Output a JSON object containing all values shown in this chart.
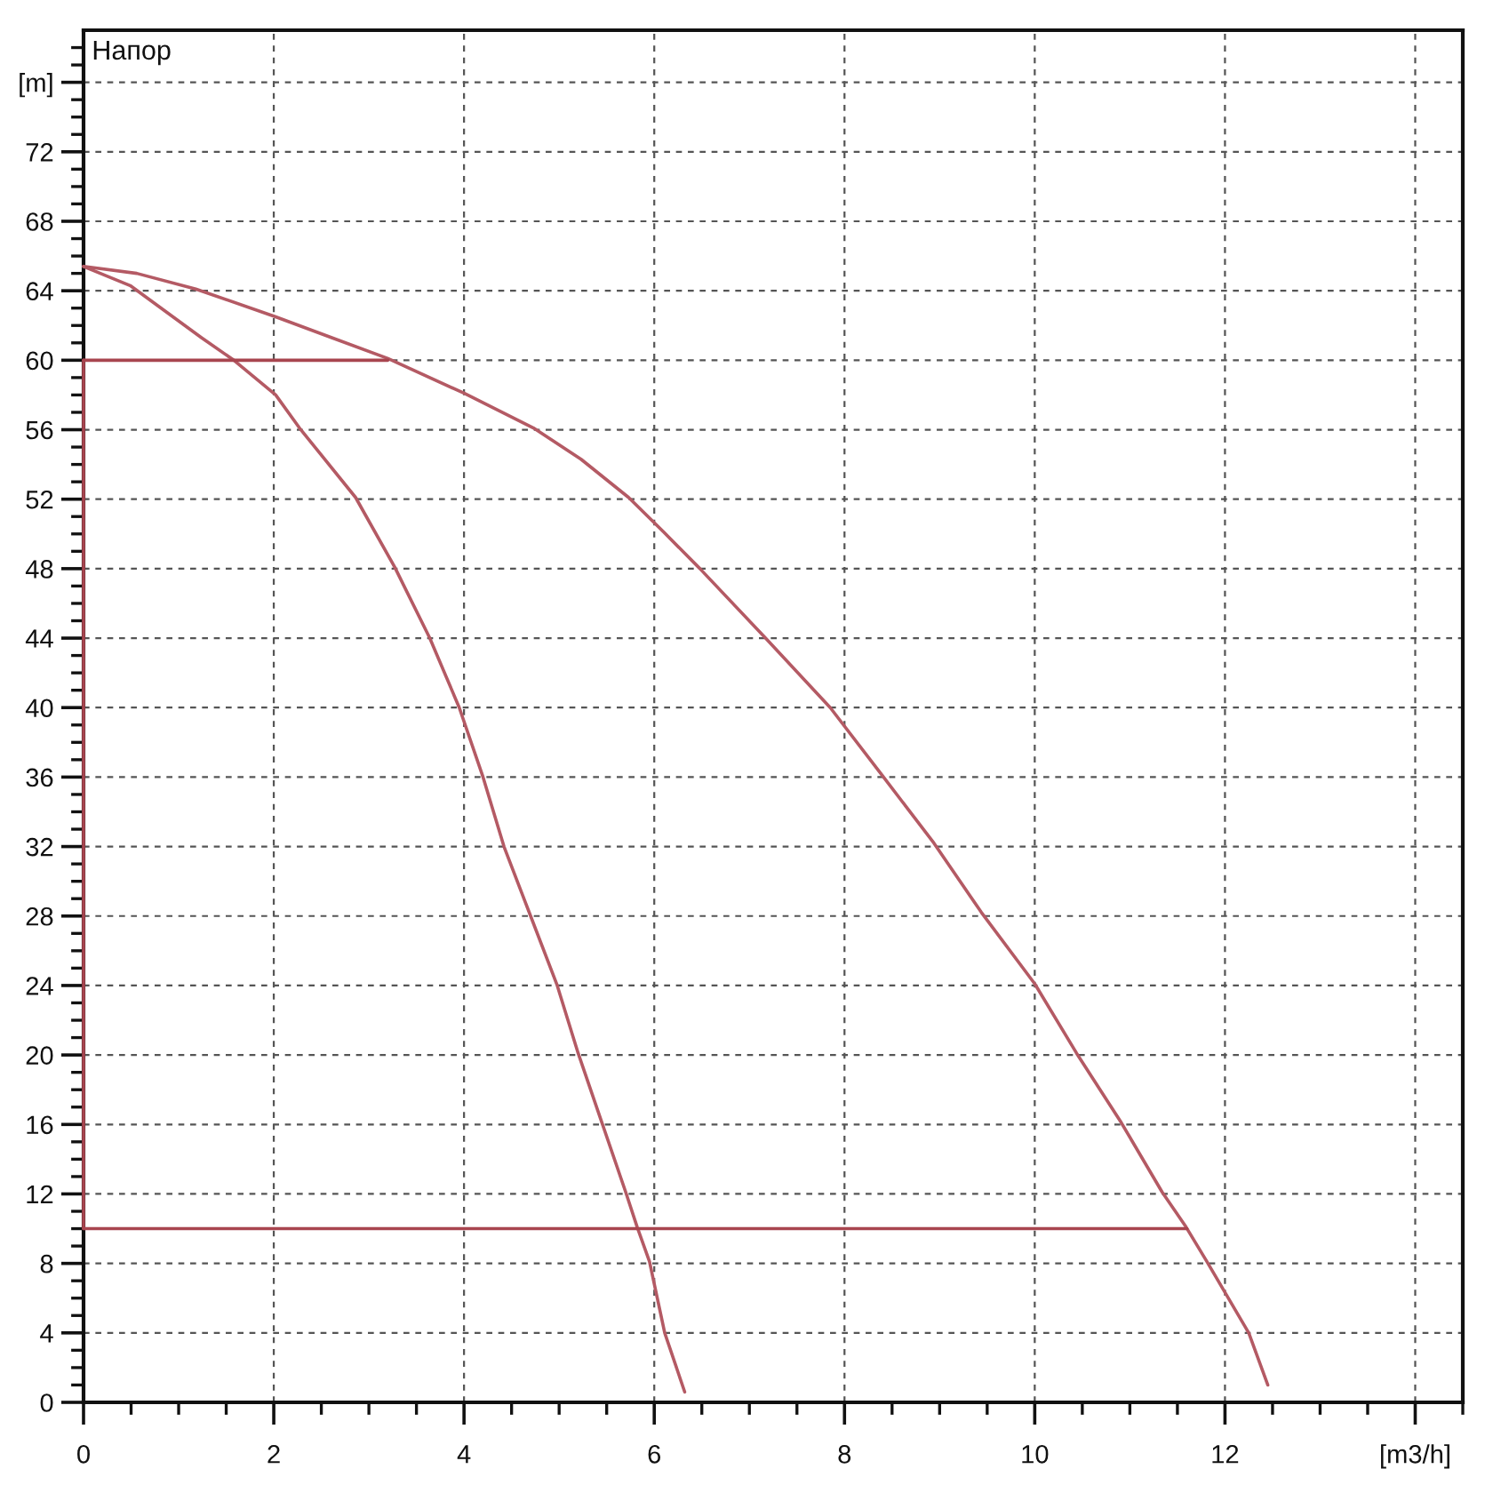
{
  "chart_data": {
    "type": "line",
    "title": "Напор",
    "xlim": [
      0,
      14.5
    ],
    "ylim": [
      0,
      79
    ],
    "xticks": [
      0,
      {
        "value": 0.5,
        "label": null
      },
      {
        "value": 1,
        "label": null
      },
      {
        "value": 1.5,
        "label": null
      },
      2,
      {
        "value": 2.5,
        "label": null
      },
      {
        "value": 3,
        "label": null
      },
      {
        "value": 3.5,
        "label": null
      },
      4,
      {
        "value": 4.5,
        "label": null
      },
      {
        "value": 5,
        "label": null
      },
      {
        "value": 5.5,
        "label": null
      },
      6,
      {
        "value": 6.5,
        "label": null
      },
      {
        "value": 7,
        "label": null
      },
      {
        "value": 7.5,
        "label": null
      },
      8,
      {
        "value": 8.5,
        "label": null
      },
      {
        "value": 9,
        "label": null
      },
      {
        "value": 9.5,
        "label": null
      },
      10,
      {
        "value": 10.5,
        "label": null
      },
      {
        "value": 11,
        "label": null
      },
      {
        "value": 11.5,
        "label": null
      },
      12,
      {
        "value": 12.5,
        "label": null
      },
      {
        "value": 13,
        "label": null
      },
      {
        "value": 13.5,
        "label": null
      },
      {
        "value": 14,
        "label": "[m3/h]"
      },
      {
        "value": 14.5,
        "label": null
      }
    ],
    "yticks": [
      0,
      {
        "value": 1,
        "label": null
      },
      {
        "value": 2,
        "label": null
      },
      {
        "value": 3,
        "label": null
      },
      4,
      {
        "value": 5,
        "label": null
      },
      {
        "value": 6,
        "label": null
      },
      {
        "value": 7,
        "label": null
      },
      8,
      {
        "value": 9,
        "label": null
      },
      {
        "value": 10,
        "label": null
      },
      {
        "value": 11,
        "label": null
      },
      12,
      {
        "value": 13,
        "label": null
      },
      {
        "value": 14,
        "label": null
      },
      {
        "value": 15,
        "label": null
      },
      16,
      {
        "value": 17,
        "label": null
      },
      {
        "value": 18,
        "label": null
      },
      {
        "value": 19,
        "label": null
      },
      20,
      {
        "value": 21,
        "label": null
      },
      {
        "value": 22,
        "label": null
      },
      {
        "value": 23,
        "label": null
      },
      24,
      {
        "value": 25,
        "label": null
      },
      {
        "value": 26,
        "label": null
      },
      {
        "value": 27,
        "label": null
      },
      28,
      {
        "value": 29,
        "label": null
      },
      {
        "value": 30,
        "label": null
      },
      {
        "value": 31,
        "label": null
      },
      32,
      {
        "value": 33,
        "label": null
      },
      {
        "value": 34,
        "label": null
      },
      {
        "value": 35,
        "label": null
      },
      36,
      {
        "value": 37,
        "label": null
      },
      {
        "value": 38,
        "label": null
      },
      {
        "value": 39,
        "label": null
      },
      40,
      {
        "value": 41,
        "label": null
      },
      {
        "value": 42,
        "label": null
      },
      {
        "value": 43,
        "label": null
      },
      44,
      {
        "value": 45,
        "label": null
      },
      {
        "value": 46,
        "label": null
      },
      {
        "value": 47,
        "label": null
      },
      48,
      {
        "value": 49,
        "label": null
      },
      {
        "value": 50,
        "label": null
      },
      {
        "value": 51,
        "label": null
      },
      52,
      {
        "value": 53,
        "label": null
      },
      {
        "value": 54,
        "label": null
      },
      {
        "value": 55,
        "label": null
      },
      56,
      {
        "value": 57,
        "label": null
      },
      {
        "value": 58,
        "label": null
      },
      {
        "value": 59,
        "label": null
      },
      60,
      {
        "value": 61,
        "label": null
      },
      {
        "value": 62,
        "label": null
      },
      {
        "value": 63,
        "label": null
      },
      64,
      {
        "value": 65,
        "label": null
      },
      {
        "value": 66,
        "label": null
      },
      {
        "value": 67,
        "label": null
      },
      68,
      {
        "value": 69,
        "label": null
      },
      {
        "value": 70,
        "label": null
      },
      {
        "value": 71,
        "label": null
      },
      72,
      {
        "value": 73,
        "label": null
      },
      {
        "value": 74,
        "label": null
      },
      {
        "value": 75,
        "label": null
      },
      {
        "value": 76,
        "label": "[m]"
      },
      {
        "value": 77,
        "label": null
      },
      {
        "value": 78,
        "label": null
      }
    ],
    "grid": true,
    "series": [
      {
        "color": "#b45a64",
        "x": [
          0,
          0.56,
          1.18,
          2.02,
          2.61,
          3.2,
          4.0,
          4.73,
          5.23,
          5.73,
          6.1,
          6.48,
          7.17,
          7.85,
          8.41,
          8.94,
          9.44,
          10.0,
          10.44,
          10.91,
          11.34,
          11.59,
          11.81,
          12.25,
          12.45
        ],
        "values": [
          65.4,
          65.0,
          64.1,
          62.5,
          61.3,
          60.1,
          58.1,
          56.1,
          54.3,
          52.1,
          50.1,
          48.0,
          44.0,
          40.0,
          36.0,
          32.2,
          28.2,
          24.1,
          20.1,
          16.1,
          12.1,
          10.1,
          8.1,
          4.0,
          1.0
        ]
      },
      {
        "color": "#b45a64",
        "x": [
          0,
          0.49,
          1.24,
          1.58,
          2.02,
          2.27,
          2.86,
          3.27,
          3.64,
          3.95,
          4.2,
          4.42,
          4.7,
          4.98,
          5.2,
          5.45,
          5.7,
          5.82,
          5.95,
          6.11,
          6.32
        ],
        "values": [
          65.4,
          64.3,
          61.3,
          60.0,
          58.0,
          56.1,
          52.1,
          48.1,
          44.0,
          40.0,
          36.0,
          32.0,
          28.0,
          24.0,
          20.1,
          16.1,
          12.1,
          10.1,
          8.1,
          4.0,
          0.6
        ]
      },
      {
        "color": "#a8454f",
        "x": [
          0,
          3.2
        ],
        "values": [
          60,
          60
        ]
      },
      {
        "color": "#a8454f",
        "x": [
          0,
          0
        ],
        "values": [
          10,
          60
        ]
      },
      {
        "color": "#a8454f",
        "x": [
          0,
          11.6
        ],
        "values": [
          10,
          10
        ]
      }
    ]
  }
}
